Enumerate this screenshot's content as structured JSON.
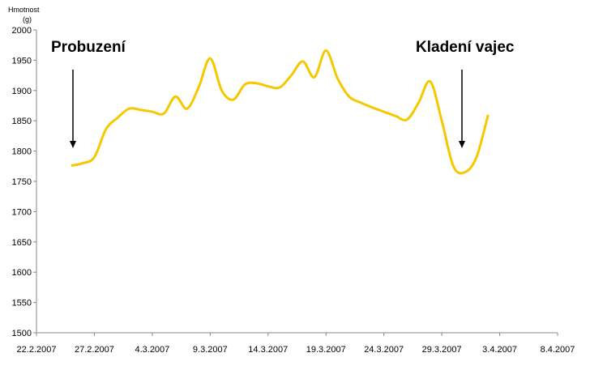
{
  "chart_data": {
    "type": "line",
    "y_label": [
      "Hmotnost",
      "(g)"
    ],
    "annotations": [
      "Probuzení",
      "Kladení vajec"
    ],
    "x": [
      "2007-02-25",
      "2007-02-26",
      "2007-02-27",
      "2007-02-28",
      "2007-03-01",
      "2007-03-02",
      "2007-03-03",
      "2007-03-04",
      "2007-03-05",
      "2007-03-06",
      "2007-03-07",
      "2007-03-08",
      "2007-03-09",
      "2007-03-10",
      "2007-03-11",
      "2007-03-12",
      "2007-03-13",
      "2007-03-14",
      "2007-03-15",
      "2007-03-16",
      "2007-03-17",
      "2007-03-18",
      "2007-03-19",
      "2007-03-20",
      "2007-03-21",
      "2007-03-22",
      "2007-03-23",
      "2007-03-24",
      "2007-03-25",
      "2007-03-26",
      "2007-03-27",
      "2007-03-28",
      "2007-03-29",
      "2007-03-30",
      "2007-03-31",
      "2007-04-01",
      "2007-04-02"
    ],
    "series": [
      {
        "color": "#f5c800",
        "values": [
          1776,
          1780,
          1790,
          1836,
          1855,
          1870,
          1868,
          1865,
          1862,
          1890,
          1870,
          1905,
          1953,
          1900,
          1885,
          1910,
          1912,
          1907,
          1905,
          1925,
          1948,
          1922,
          1966,
          1920,
          1890,
          1880,
          1872,
          1865,
          1858,
          1852,
          1880,
          1915,
          1850,
          1775,
          1765,
          1790,
          1860
        ]
      }
    ],
    "xlim": [
      "2007-02-22",
      "2007-04-08"
    ],
    "xticks": [
      {
        "value": "2007-02-22",
        "label": "22.2.2007"
      },
      {
        "value": "2007-02-27",
        "label": "27.2.2007"
      },
      {
        "value": "2007-03-04",
        "label": "4.3.2007"
      },
      {
        "value": "2007-03-09",
        "label": "9.3.2007"
      },
      {
        "value": "2007-03-14",
        "label": "14.3.2007"
      },
      {
        "value": "2007-03-19",
        "label": "19.3.2007"
      },
      {
        "value": "2007-03-24",
        "label": "24.3.2007"
      },
      {
        "value": "2007-03-29",
        "label": "29.3.2007"
      },
      {
        "value": "2007-04-03",
        "label": "3.4.2007"
      },
      {
        "value": "2007-04-08",
        "label": "8.4.2007"
      }
    ],
    "ylim": [
      1500,
      2000
    ],
    "yticks": [
      1500,
      1550,
      1600,
      1650,
      1700,
      1750,
      1800,
      1850,
      1900,
      1950,
      2000
    ]
  }
}
